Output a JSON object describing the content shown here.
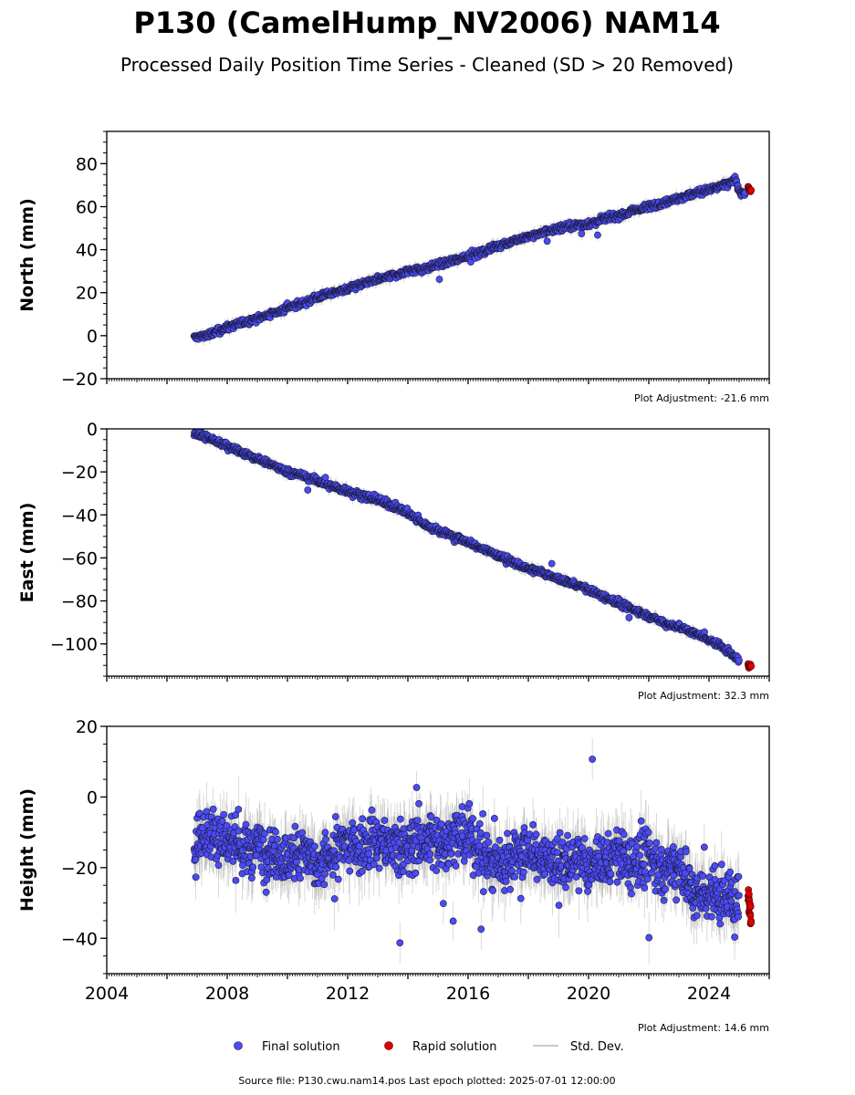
{
  "title": "P130 (CamelHump_NV2006) NAM14",
  "subtitle": "Processed Daily Position Time Series - Cleaned (SD > 20 Removed)",
  "legend": {
    "final_label": "Final solution",
    "rapid_label": "Rapid solution",
    "std_label": "Std. Dev.",
    "placement": "bottom-center"
  },
  "footer": {
    "source_label": "Source file: P130.cwu.nam14.pos  Last epoch plotted: 2025-07-01 12:00:00"
  },
  "colors": {
    "final": "#4b4bf5",
    "rapid": "#e00000",
    "std": "#9a9a9a",
    "marker_edge": "#1a1a3a"
  },
  "chart_data": [
    {
      "type": "scatter",
      "component": "north",
      "ylabel": "North (mm)",
      "xlim": [
        2004,
        2026
      ],
      "ylim": [
        -20,
        95
      ],
      "yticks": [
        "80",
        "60",
        "40",
        "20",
        "0",
        "−20"
      ],
      "ytick_values": [
        80,
        60,
        40,
        20,
        0,
        -20
      ],
      "xtick_labels_shown": false,
      "adjustment_label": "Plot Adjustment: -21.6 mm",
      "final_series": {
        "name": "Final solution",
        "x": [
          2006.9,
          2007.5,
          2008.0,
          2008.5,
          2009.0,
          2009.5,
          2010.0,
          2010.5,
          2011.0,
          2011.5,
          2012.0,
          2012.5,
          2013.0,
          2013.5,
          2014.0,
          2014.5,
          2015.0,
          2015.5,
          2016.0,
          2016.5,
          2017.0,
          2017.5,
          2018.0,
          2018.5,
          2019.0,
          2019.5,
          2020.0,
          2020.5,
          2021.0,
          2021.5,
          2022.0,
          2022.5,
          2023.0,
          2023.5,
          2024.0,
          2024.5,
          2024.9,
          2025.0,
          2025.2
        ],
        "y": [
          -1,
          1,
          4,
          6,
          8,
          10,
          13,
          15,
          18,
          20,
          22,
          24,
          26,
          28,
          30,
          31,
          33,
          35,
          37,
          39,
          42,
          44,
          46,
          48,
          50,
          51,
          52,
          54,
          56,
          58,
          60,
          62,
          64,
          66,
          68,
          70,
          73,
          66,
          66
        ]
      },
      "rapid_series": {
        "name": "Rapid solution",
        "x": [
          2025.3,
          2025.35,
          2025.4
        ],
        "y": [
          69,
          68,
          67
        ]
      }
    },
    {
      "type": "scatter",
      "component": "east",
      "ylabel": "East (mm)",
      "xlim": [
        2004,
        2026
      ],
      "ylim": [
        -115,
        0
      ],
      "yticks": [
        "0",
        "−20",
        "−40",
        "−60",
        "−80",
        "−100"
      ],
      "ytick_values": [
        0,
        -20,
        -40,
        -60,
        -80,
        -100
      ],
      "xtick_labels_shown": false,
      "adjustment_label": "Plot Adjustment: 32.3 mm",
      "final_series": {
        "name": "Final solution",
        "x": [
          2006.9,
          2007.5,
          2008.0,
          2008.5,
          2009.0,
          2009.5,
          2010.0,
          2010.5,
          2011.0,
          2011.5,
          2012.0,
          2012.5,
          2013.0,
          2013.5,
          2014.0,
          2014.5,
          2015.0,
          2015.5,
          2016.0,
          2016.5,
          2017.0,
          2017.5,
          2018.0,
          2018.5,
          2019.0,
          2019.5,
          2020.0,
          2020.5,
          2021.0,
          2021.5,
          2022.0,
          2022.5,
          2023.0,
          2023.5,
          2024.0,
          2024.5,
          2025.0
        ],
        "y": [
          -2,
          -5,
          -8,
          -11,
          -14,
          -17,
          -20,
          -22,
          -24,
          -27,
          -29,
          -31,
          -33,
          -36,
          -39,
          -44,
          -47,
          -50,
          -53,
          -56,
          -59,
          -62,
          -65,
          -67,
          -70,
          -72,
          -75,
          -78,
          -81,
          -84,
          -87,
          -90,
          -92,
          -95,
          -98,
          -102,
          -108
        ]
      },
      "rapid_series": {
        "name": "Rapid solution",
        "x": [
          2025.3,
          2025.35,
          2025.4
        ],
        "y": [
          -110,
          -111,
          -110
        ]
      }
    },
    {
      "type": "scatter",
      "component": "height",
      "ylabel": "Height (mm)",
      "xlim": [
        2004,
        2026
      ],
      "ylim": [
        -50,
        20
      ],
      "yticks": [
        "20",
        "0",
        "−20",
        "−40"
      ],
      "ytick_values": [
        20,
        0,
        -20,
        -40
      ],
      "xtick_labels_shown": true,
      "xticks": [
        "2004",
        "2008",
        "2012",
        "2016",
        "2020",
        "2024"
      ],
      "xtick_values": [
        2004,
        2008,
        2012,
        2016,
        2020,
        2024
      ],
      "adjustment_label": "Plot Adjustment: 14.6 mm",
      "final_series": {
        "name": "Final solution",
        "x": [
          2006.9,
          2007.5,
          2008.0,
          2008.5,
          2009.0,
          2009.5,
          2010.0,
          2010.5,
          2011.0,
          2011.5,
          2012.0,
          2012.5,
          2013.0,
          2013.5,
          2014.0,
          2014.5,
          2015.0,
          2015.5,
          2016.0,
          2016.5,
          2017.0,
          2017.5,
          2018.0,
          2018.5,
          2019.0,
          2019.5,
          2020.0,
          2020.5,
          2021.0,
          2021.5,
          2022.0,
          2022.5,
          2023.0,
          2023.5,
          2024.0,
          2024.5,
          2025.0
        ],
        "y": [
          -13,
          -10,
          -12,
          -15,
          -14,
          -16,
          -18,
          -14,
          -20,
          -16,
          -13,
          -14,
          -12,
          -15,
          -14,
          -12,
          -13,
          -12,
          -11,
          -16,
          -18,
          -17,
          -16,
          -18,
          -19,
          -17,
          -20,
          -18,
          -17,
          -19,
          -16,
          -21,
          -18,
          -28,
          -27,
          -29,
          -30
        ]
      },
      "rapid_series": {
        "name": "Rapid solution",
        "x": [
          2025.3,
          2025.35,
          2025.4
        ],
        "y": [
          -27,
          -31,
          -35
        ]
      }
    }
  ]
}
